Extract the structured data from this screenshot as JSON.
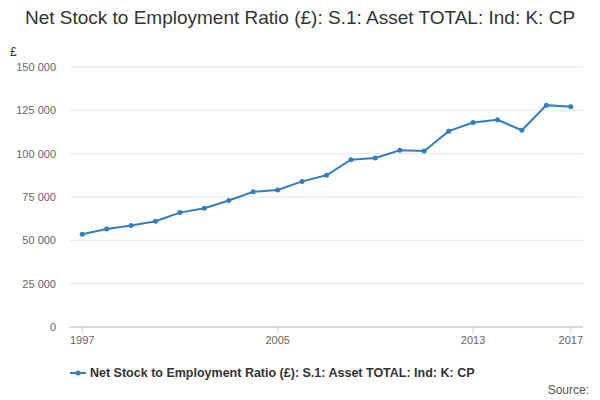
{
  "chart_data": {
    "type": "line",
    "title": "Net Stock to Employment Ratio (£): S.1: Asset TOTAL: Ind: K: CP",
    "y_label": "£",
    "source": "Source:",
    "x": [
      1997,
      1998,
      1999,
      2000,
      2001,
      2002,
      2003,
      2004,
      2005,
      2006,
      2007,
      2008,
      2009,
      2010,
      2011,
      2012,
      2013,
      2014,
      2015,
      2016,
      2017
    ],
    "series": [
      {
        "name": "Net Stock to Employment Ratio (£): S.1: Asset TOTAL: Ind: K: CP",
        "color": "#2f7fc1",
        "marker": "circle",
        "values": [
          53500,
          56500,
          58500,
          61000,
          66000,
          68500,
          73000,
          78000,
          79000,
          84000,
          87500,
          96500,
          97500,
          102000,
          101500,
          113000,
          118000,
          119500,
          113500,
          128000,
          127000
        ]
      }
    ],
    "xlim": [
      1996.5,
      2017.5
    ],
    "xticks": [
      1997,
      2005,
      2013,
      2017
    ],
    "ylim": [
      0,
      150000
    ],
    "yticks": [
      0,
      {
        "value": 25000,
        "label": "25 000"
      },
      {
        "value": 50000,
        "label": "50 000"
      },
      {
        "value": 75000,
        "label": "75 000"
      },
      {
        "value": 100000,
        "label": "100 000"
      },
      {
        "value": 125000,
        "label": "125 000"
      },
      {
        "value": 150000,
        "label": "150 000"
      }
    ],
    "grid": true,
    "legend": "bottom"
  }
}
